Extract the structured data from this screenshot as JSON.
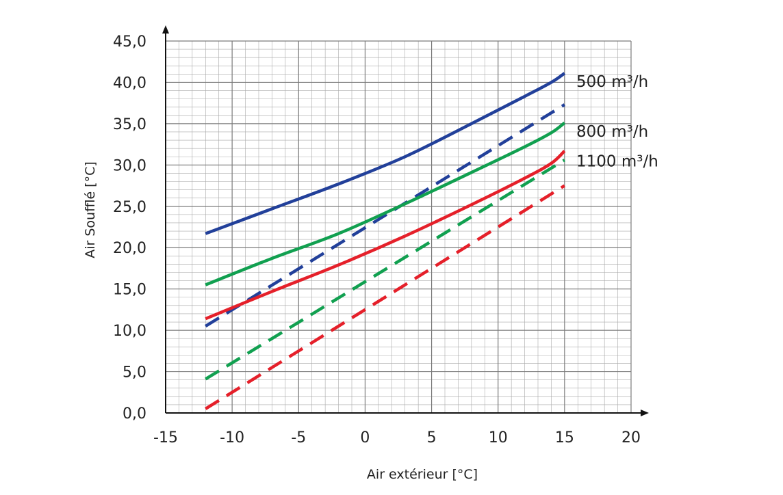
{
  "chart_data": {
    "type": "line",
    "title": "",
    "xlabel": "Air extérieur  [°C]",
    "ylabel": "Air Soufflé [°C]",
    "xlim": [
      -15,
      20
    ],
    "ylim": [
      0,
      45
    ],
    "x_ticks": [
      "-15",
      "-10",
      "-5",
      "0",
      "5",
      "10",
      "15",
      "20"
    ],
    "y_ticks": [
      "0,0",
      "5,0",
      "10,0",
      "15,0",
      "20,0",
      "25,0",
      "30,0",
      "35,0",
      "40,0",
      "45,0"
    ],
    "x_tick_values": [
      -15,
      -10,
      -5,
      0,
      5,
      10,
      15,
      20
    ],
    "y_tick_values": [
      0,
      5,
      10,
      15,
      20,
      25,
      30,
      35,
      40,
      45
    ],
    "grid": true,
    "minor_grid_step": {
      "x": 1,
      "y": 1
    },
    "series": [
      {
        "label": "500 m³/h",
        "color": "#22409a",
        "style": "solid",
        "x": [
          -12,
          -7,
          -2,
          3,
          8,
          12,
          14,
          15
        ],
        "y": [
          21.7,
          24.7,
          27.7,
          31.0,
          35.0,
          38.3,
          40.0,
          41.1
        ]
      },
      {
        "style": "dashed",
        "color": "#22409a",
        "x": [
          -12,
          15
        ],
        "y": [
          10.5,
          37.3
        ]
      },
      {
        "label": "800 m³/h",
        "color": "#11a050",
        "style": "solid",
        "x": [
          -12,
          -7,
          -2,
          3,
          8,
          12,
          14,
          15
        ],
        "y": [
          15.5,
          18.7,
          21.7,
          25.3,
          29.1,
          32.2,
          33.9,
          35.1
        ]
      },
      {
        "style": "dashed",
        "color": "#11a050",
        "x": [
          -12,
          15
        ],
        "y": [
          4.1,
          30.6
        ]
      },
      {
        "label": "1100 m³/h",
        "color": "#e5202a",
        "style": "solid",
        "x": [
          -12,
          -7,
          -2,
          3,
          8,
          12,
          14,
          15
        ],
        "y": [
          11.4,
          14.7,
          17.9,
          21.4,
          25.2,
          28.4,
          30.2,
          31.7
        ]
      },
      {
        "style": "dashed",
        "color": "#e5202a",
        "x": [
          -12,
          15
        ],
        "y": [
          0.5,
          27.5
        ]
      }
    ],
    "legend": [
      {
        "label": "500 m³/h",
        "y": 41.1
      },
      {
        "label": "800 m³/h",
        "y": 35.1
      },
      {
        "label": "1100 m³/h",
        "y": 31.7
      }
    ]
  }
}
